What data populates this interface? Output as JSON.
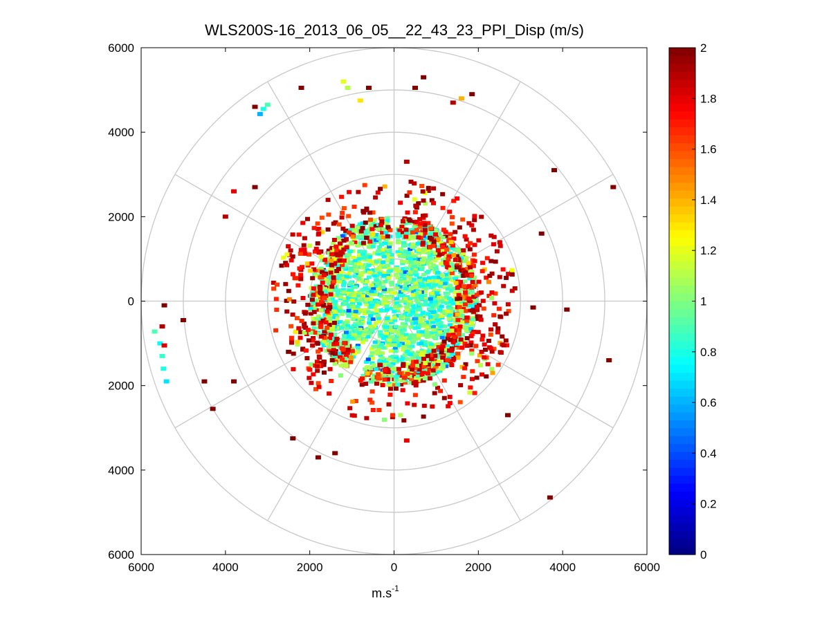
{
  "chart_data": {
    "type": "heatmap",
    "subtype": "polar-ppi",
    "title": "WLS200S-16_2013_06_05__22_43_23_PPI_Disp (m/s)",
    "xlabel_base": "m.s",
    "xlabel_exponent": "-1",
    "ylabel": "",
    "xlim": [
      -6000,
      6000
    ],
    "ylim": [
      -6000,
      6000
    ],
    "x_tick_labels": [
      "6000",
      "4000",
      "2000",
      "0",
      "2000",
      "4000",
      "6000"
    ],
    "y_tick_labels": [
      "6000",
      "4000",
      "2000",
      "0",
      "2000",
      "4000",
      "6000"
    ],
    "range_rings": [
      1000,
      2000,
      3000,
      4000,
      5000,
      6000
    ],
    "spoke_angles_deg": [
      0,
      30,
      60,
      90,
      120,
      150,
      180,
      210,
      240,
      270,
      300,
      330
    ],
    "grid": true,
    "colorbar": {
      "colormap": "jet",
      "range": [
        0,
        2
      ],
      "tick_labels": [
        "0",
        "0.2",
        "0.4",
        "0.6",
        "0.8",
        "1",
        "1.2",
        "1.4",
        "1.6",
        "1.8",
        "2"
      ]
    },
    "data_regions": [
      {
        "description": "core",
        "radius_range": [
          0,
          2000
        ],
        "value_range": [
          0.7,
          1.2
        ]
      },
      {
        "description": "edge",
        "radius_range": [
          1500,
          2900
        ],
        "value_range": [
          1.6,
          2.0
        ]
      },
      {
        "description": "gap",
        "azimuth_deg": 0,
        "note": "no data along north"
      },
      {
        "description": "gap",
        "azimuth_deg": 210,
        "note": "no data wedge south-southwest"
      }
    ],
    "sparse_returns": [
      {
        "x": -5680,
        "y": -720,
        "value": 0.9
      },
      {
        "x": -5550,
        "y": -1000,
        "value": 0.75
      },
      {
        "x": -5500,
        "y": -1300,
        "value": 0.85
      },
      {
        "x": -5470,
        "y": -1600,
        "value": 0.8
      },
      {
        "x": -5400,
        "y": -1900,
        "value": 0.7
      },
      {
        "x": -5500,
        "y": -600,
        "value": 1.9
      },
      {
        "x": -5450,
        "y": -1050,
        "value": 1.8
      },
      {
        "x": -5450,
        "y": -100,
        "value": 2.0
      },
      {
        "x": -5000,
        "y": -450,
        "value": 2.0
      },
      {
        "x": -3100,
        "y": 4550,
        "value": 0.8
      },
      {
        "x": -3000,
        "y": 4650,
        "value": 0.9
      },
      {
        "x": -3180,
        "y": 4430,
        "value": 0.6
      },
      {
        "x": -3300,
        "y": 4600,
        "value": 2.0
      },
      {
        "x": -2200,
        "y": 5050,
        "value": 2.0
      },
      {
        "x": -1200,
        "y": 5200,
        "value": 1.2
      },
      {
        "x": -1100,
        "y": 5050,
        "value": 1.1
      },
      {
        "x": -800,
        "y": 4750,
        "value": 1.3
      },
      {
        "x": -600,
        "y": 5050,
        "value": 2.0
      },
      {
        "x": 500,
        "y": 5050,
        "value": 2.0
      },
      {
        "x": 700,
        "y": 5300,
        "value": 2.0
      },
      {
        "x": 1400,
        "y": 4700,
        "value": 1.9
      },
      {
        "x": 1600,
        "y": 4800,
        "value": 1.4
      },
      {
        "x": 1850,
        "y": 4900,
        "value": 2.0
      },
      {
        "x": 3800,
        "y": 3100,
        "value": 2.0
      },
      {
        "x": 5200,
        "y": 2700,
        "value": 2.0
      },
      {
        "x": 3500,
        "y": 1600,
        "value": 2.0
      },
      {
        "x": 4100,
        "y": -200,
        "value": 2.0
      },
      {
        "x": 3300,
        "y": -150,
        "value": 2.0
      },
      {
        "x": 5100,
        "y": -1400,
        "value": 2.0
      },
      {
        "x": 3700,
        "y": -4650,
        "value": 2.0
      },
      {
        "x": 2700,
        "y": -2700,
        "value": 2.0
      },
      {
        "x": -4300,
        "y": -2550,
        "value": 2.0
      },
      {
        "x": -3800,
        "y": -1900,
        "value": 2.0
      },
      {
        "x": -4500,
        "y": -1900,
        "value": 2.0
      },
      {
        "x": -3800,
        "y": 2600,
        "value": 1.8
      },
      {
        "x": -4000,
        "y": 2000,
        "value": 1.9
      },
      {
        "x": -3300,
        "y": 2700,
        "value": 2.0
      },
      {
        "x": -2500,
        "y": -1200,
        "value": 2.0
      },
      {
        "x": -1800,
        "y": -3700,
        "value": 2.0
      },
      {
        "x": -1400,
        "y": -3600,
        "value": 2.0
      },
      {
        "x": -2400,
        "y": -3250,
        "value": 2.0
      },
      {
        "x": 300,
        "y": -3300,
        "value": 1.8
      },
      {
        "x": 300,
        "y": 3300,
        "value": 1.9
      }
    ]
  }
}
